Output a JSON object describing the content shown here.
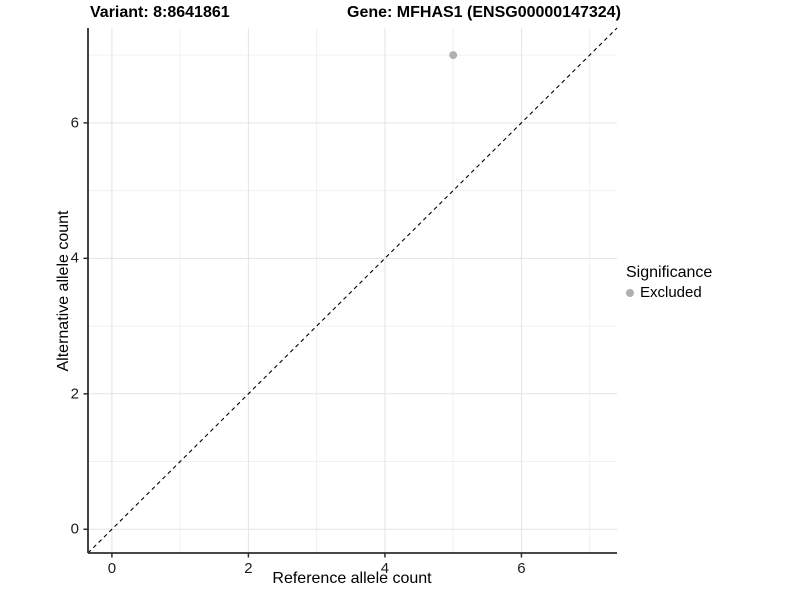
{
  "titles": {
    "variant": "Variant: 8:8641861",
    "gene": "Gene: MFHAS1 (ENSG00000147324)"
  },
  "axes": {
    "x_label": "Reference allele count",
    "y_label": "Alternative allele count"
  },
  "legend": {
    "title": "Significance",
    "items": [
      {
        "label": "Excluded",
        "color": "#b0b0b0"
      }
    ]
  },
  "chart_data": {
    "type": "scatter",
    "title": "Variant: 8:8641861   Gene: MFHAS1 (ENSG00000147324)",
    "xlabel": "Reference allele count",
    "ylabel": "Alternative allele count",
    "xlim": [
      -0.35,
      7.4
    ],
    "ylim": [
      -0.35,
      7.4
    ],
    "x_ticks": [
      0,
      2,
      4,
      6
    ],
    "y_ticks": [
      0,
      2,
      4,
      6
    ],
    "x_minor_ticks": [
      1,
      3,
      5,
      7
    ],
    "y_minor_ticks": [
      1,
      3,
      5,
      7
    ],
    "grid": true,
    "legend_position": "right",
    "series": [
      {
        "name": "Excluded",
        "color": "#b0b0b0",
        "points": [
          {
            "x": 5,
            "y": 7
          }
        ]
      }
    ],
    "reference_line": {
      "kind": "identity",
      "slope": 1,
      "intercept": 0,
      "style": "dashed",
      "color": "#000000"
    },
    "colors": {
      "grid_major": "#e3e3e3",
      "grid_minor": "#f0f0f0",
      "axis_line": "#2e2e2e",
      "tick": "#2e2e2e",
      "point_excluded": "#b0b0b0"
    }
  }
}
